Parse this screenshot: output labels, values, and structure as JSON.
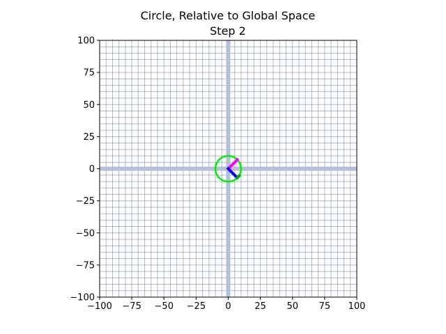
{
  "chart_data": {
    "type": "line",
    "title": "Circle, Relative to Global Space",
    "subtitle": "Step 2",
    "xlabel": "",
    "ylabel": "",
    "xlim": [
      -100,
      100
    ],
    "ylim": [
      -100,
      100
    ],
    "x_ticks": [
      -100,
      -75,
      -50,
      -25,
      0,
      25,
      50,
      75,
      100
    ],
    "y_ticks": [
      -100,
      -75,
      -50,
      -25,
      0,
      25,
      50,
      75,
      100
    ],
    "x_tick_labels": [
      "−100",
      "−75",
      "−50",
      "−25",
      "0",
      "25",
      "50",
      "75",
      "100"
    ],
    "y_tick_labels": [
      "−100",
      "−75",
      "−50",
      "−25",
      "0",
      "25",
      "50",
      "75",
      "100"
    ],
    "grid": true,
    "grid_minor_step": 5,
    "series": [
      {
        "shape": "circle",
        "center": [
          0,
          0
        ],
        "radius": 10,
        "color": "#00ee00"
      },
      {
        "shape": "segment",
        "from": [
          0,
          0
        ],
        "to": [
          7.07,
          7.07
        ],
        "color": "#ff00ff"
      },
      {
        "shape": "segment",
        "from": [
          0,
          0
        ],
        "to": [
          7.07,
          -7.07
        ],
        "color": "#0000ff"
      },
      {
        "shape": "segment",
        "from": [
          7.07,
          -7.07
        ],
        "to": [
          8.5,
          -5.6
        ],
        "color": "#00aa00"
      }
    ],
    "colors": {
      "grid": "#6f7fa0",
      "axis_band": "#b4bfd8"
    }
  }
}
